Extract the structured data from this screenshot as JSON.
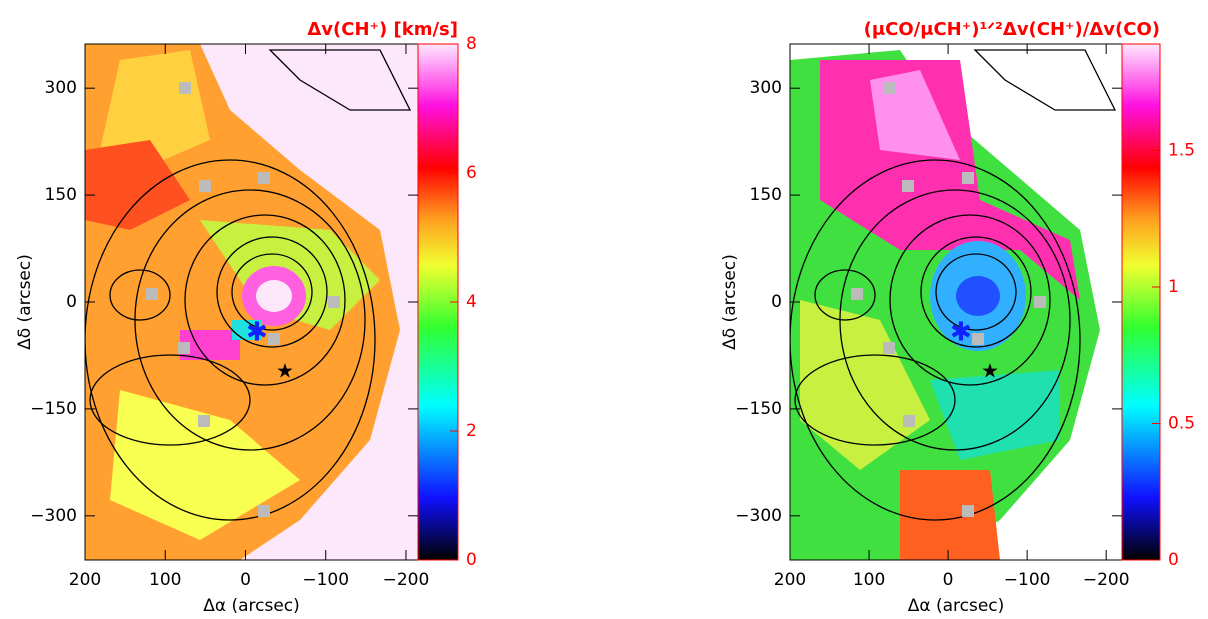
{
  "chart_data": [
    {
      "type": "map",
      "title": "Δv(CH⁺) [km/s]",
      "xlabel": "Δα (arcsec)",
      "ylabel": "Δδ (arcsec)",
      "xlim": [
        200,
        -215
      ],
      "ylim": [
        -362,
        362
      ],
      "xticks": [
        200,
        100,
        0,
        {
          "value": -100,
          "label": "−100"
        },
        {
          "value": -200,
          "label": "−200"
        }
      ],
      "yticks": [
        {
          "value": -300,
          "label": "−300"
        },
        {
          "value": -150,
          "label": "−150"
        },
        0,
        150,
        300
      ],
      "clim": [
        0,
        8
      ],
      "cticks": [
        0,
        2,
        4,
        6,
        8
      ],
      "color": "#ff0000"
    },
    {
      "type": "map",
      "title": "(μCO/μCH⁺)¹ᐟ²Δv(CH⁺)/Δv(CO)",
      "xlabel": "Δα (arcsec)",
      "ylabel": "Δδ (arcsec)",
      "xlim": [
        200,
        -220
      ],
      "ylim": [
        -362,
        362
      ],
      "xticks": [
        200,
        100,
        0,
        {
          "value": -100,
          "label": "−100"
        },
        {
          "value": -200,
          "label": "−200"
        }
      ],
      "yticks": [
        {
          "value": -300,
          "label": "−300"
        },
        {
          "value": -150,
          "label": "−150"
        },
        0,
        150,
        300
      ],
      "clim": [
        0,
        1.89
      ],
      "cticks": [
        0,
        0.5,
        1,
        1.5
      ],
      "color": "#ff0000"
    }
  ]
}
